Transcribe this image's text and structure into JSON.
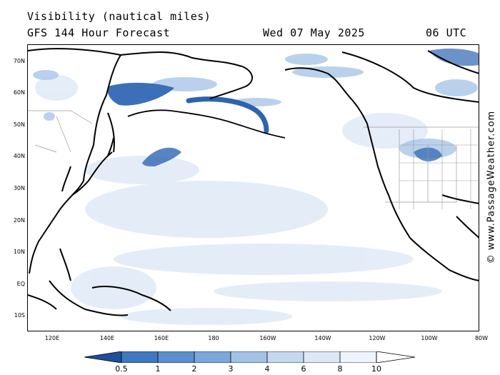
{
  "header": {
    "title": "Visibility (nautical miles)",
    "model": "GFS 144 Hour Forecast",
    "date": "Wed 07 May 2025",
    "time": "06 UTC"
  },
  "credit": "© www.PassageWeather.com",
  "axes": {
    "latitude_labels": [
      "70N",
      "60N",
      "50N",
      "40N",
      "30N",
      "20N",
      "10N",
      "EQ",
      "10S"
    ],
    "longitude_labels": [
      "120E",
      "140E",
      "160E",
      "180",
      "160W",
      "140W",
      "120W",
      "100W",
      "80W"
    ]
  },
  "legend": {
    "ticks": [
      "0.5",
      "1",
      "2",
      "3",
      "4",
      "6",
      "8",
      "10"
    ],
    "colors": [
      "#2e63ad",
      "#3f78c0",
      "#5a8fcf",
      "#7ba7db",
      "#a2c2e6",
      "#c4d8ef",
      "#e2ecf8",
      "#ffffff"
    ]
  },
  "colors": {
    "land_outline": "#000000",
    "borders": "#9a9a9a",
    "low_visibility": "#2e63ad"
  }
}
